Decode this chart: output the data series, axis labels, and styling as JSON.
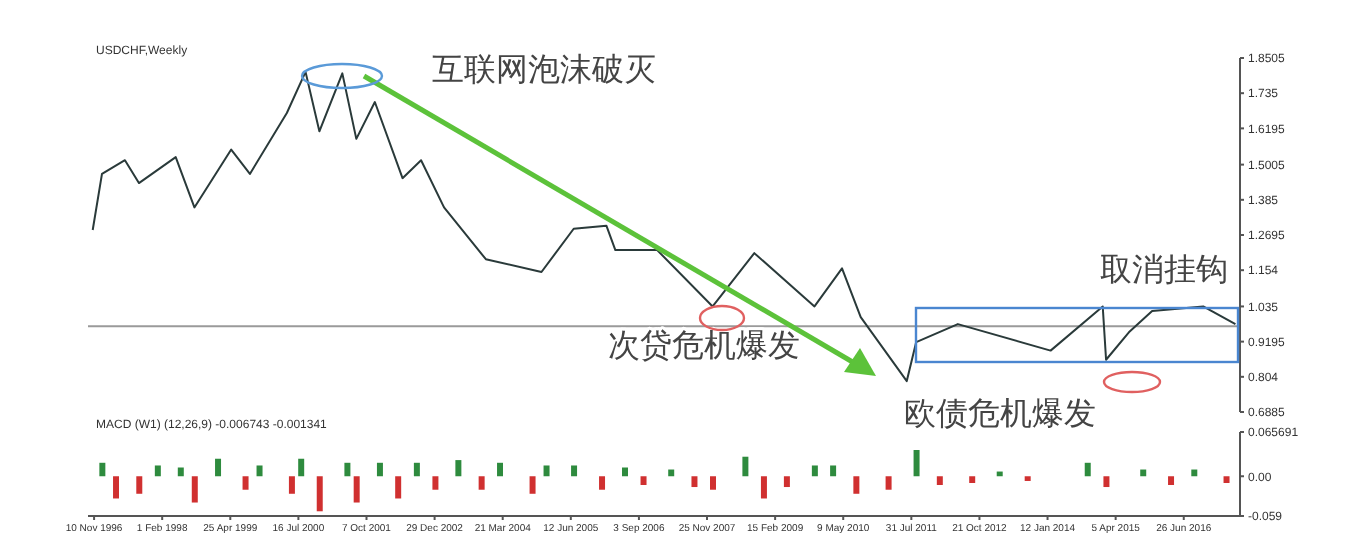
{
  "chart_data": [
    {
      "type": "line",
      "title": "USDCHF,Weekly",
      "tick_labels": "y",
      "grid": false,
      "x": [
        "1996-11",
        "1997-01",
        "1997-06",
        "1997-09",
        "1998-05",
        "1998-09",
        "1999-05",
        "1999-09",
        "2000-05",
        "2000-09",
        "2000-12",
        "2001-05",
        "2001-08",
        "2001-12",
        "2002-06",
        "2002-10",
        "2003-03",
        "2003-12",
        "2004-12",
        "2005-07",
        "2006-02",
        "2006-04",
        "2007-01",
        "2008-01",
        "2008-10",
        "2009-11",
        "2010-05",
        "2010-09",
        "2011-07",
        "2011-09",
        "2012-06",
        "2014-02",
        "2015-01-10",
        "2015-02",
        "2015-07",
        "2015-12",
        "2016-11",
        "2017-06"
      ],
      "series": [
        {
          "color": "#2a3a3a",
          "values": [
            1.286,
            1.47,
            1.515,
            1.44,
            1.525,
            1.36,
            1.55,
            1.47,
            1.67,
            1.805,
            1.61,
            1.8,
            1.585,
            1.706,
            1.456,
            1.515,
            1.36,
            1.19,
            1.148,
            1.29,
            1.3,
            1.22,
            1.22,
            1.035,
            1.21,
            1.035,
            1.16,
            1.0,
            0.79,
            0.918,
            0.977,
            0.89,
            1.035,
            0.86,
            0.95,
            1.02,
            1.035,
            0.977
          ]
        }
      ],
      "xlim": [
        "1996-10",
        "2017-07"
      ],
      "ylim": [
        0.6885,
        1.8505
      ],
      "yticks": [
        0.6885,
        0.804,
        0.9195,
        1.035,
        1.154,
        1.2695,
        1.385,
        1.5005,
        1.6195,
        1.735,
        1.8505
      ],
      "ref_lines": [
        {
          "axis": "y",
          "value": 0.97,
          "color": "#9a9a9a"
        }
      ],
      "annotations": [
        "互联网泡沫破灭",
        "次贷危机爆发",
        "欧债危机爆发",
        "取消挂钩"
      ]
    },
    {
      "type": "bar",
      "title": "MACD (W1) (12,26,9) -0.006743 -0.001341",
      "grid": false,
      "x": [
        "1997-01",
        "1997-04",
        "1997-09",
        "1998-01",
        "1998-06",
        "1998-09",
        "1999-02",
        "1999-08",
        "1999-11",
        "2000-06",
        "2000-08",
        "2000-12",
        "2001-06",
        "2001-08",
        "2002-01",
        "2002-05",
        "2002-09",
        "2003-01",
        "2003-06",
        "2003-11",
        "2004-03",
        "2004-10",
        "2005-01",
        "2005-07",
        "2006-01",
        "2006-06",
        "2006-10",
        "2007-04",
        "2007-09",
        "2008-01",
        "2008-08",
        "2008-12",
        "2009-05",
        "2009-11",
        "2010-03",
        "2010-08",
        "2011-03",
        "2011-09",
        "2012-02",
        "2012-09",
        "2013-03",
        "2013-09",
        "2014-10",
        "2015-02",
        "2015-10",
        "2016-04",
        "2016-09",
        "2017-04"
      ],
      "values": [
        0.02,
        -0.033,
        -0.026,
        0.016,
        0.013,
        -0.039,
        0.026,
        -0.02,
        0.016,
        -0.026,
        0.026,
        -0.052,
        0.02,
        -0.039,
        0.02,
        -0.033,
        0.02,
        -0.02,
        0.024,
        -0.02,
        0.02,
        -0.026,
        0.016,
        0.016,
        -0.02,
        0.013,
        -0.013,
        0.01,
        -0.016,
        -0.02,
        0.029,
        -0.033,
        -0.016,
        0.016,
        0.016,
        -0.026,
        -0.02,
        0.039,
        -0.013,
        -0.01,
        0.007,
        -0.007,
        0.02,
        -0.016,
        0.01,
        -0.013,
        0.01,
        -0.01
      ],
      "colors": [
        "#2e8b3e",
        "#d03030",
        "#d03030",
        "#2e8b3e",
        "#2e8b3e",
        "#d03030",
        "#2e8b3e",
        "#d03030",
        "#2e8b3e",
        "#d03030",
        "#2e8b3e",
        "#d03030",
        "#2e8b3e",
        "#d03030",
        "#2e8b3e",
        "#d03030",
        "#2e8b3e",
        "#d03030",
        "#2e8b3e",
        "#d03030",
        "#2e8b3e",
        "#d03030",
        "#2e8b3e",
        "#2e8b3e",
        "#d03030",
        "#2e8b3e",
        "#d03030",
        "#2e8b3e",
        "#d03030",
        "#d03030",
        "#2e8b3e",
        "#d03030",
        "#d03030",
        "#2e8b3e",
        "#2e8b3e",
        "#d03030",
        "#d03030",
        "#2e8b3e",
        "#d03030",
        "#d03030",
        "#2e8b3e",
        "#d03030",
        "#2e8b3e",
        "#d03030",
        "#2e8b3e",
        "#d03030",
        "#2e8b3e",
        "#d03030"
      ],
      "xlim": [
        "1996-10",
        "2017-07"
      ],
      "xticks": [
        {
          "value": "1996-11-10",
          "label": "10 Nov 1996"
        },
        {
          "value": "1998-02-01",
          "label": "1 Feb 1998"
        },
        {
          "value": "1999-04-25",
          "label": "25 Apr 1999"
        },
        {
          "value": "2000-07-16",
          "label": "16 Jul 2000"
        },
        {
          "value": "2001-10-07",
          "label": "7 Oct 2001"
        },
        {
          "value": "2002-12-29",
          "label": "29 Dec 2002"
        },
        {
          "value": "2004-03-21",
          "label": "21 Mar 2004"
        },
        {
          "value": "2005-06-12",
          "label": "12 Jun 2005"
        },
        {
          "value": "2006-09-03",
          "label": "3 Sep 2006"
        },
        {
          "value": "2007-11-25",
          "label": "25 Nov 2007"
        },
        {
          "value": "2009-02-15",
          "label": "15 Feb 2009"
        },
        {
          "value": "2010-05-09",
          "label": "9 May 2010"
        },
        {
          "value": "2011-07-31",
          "label": "31 Jul 2011"
        },
        {
          "value": "2012-10-21",
          "label": "21 Oct 2012"
        },
        {
          "value": "2014-01-12",
          "label": "12 Jan 2014"
        },
        {
          "value": "2015-04-05",
          "label": "5 Apr 2015"
        },
        {
          "value": "2016-06-26",
          "label": "26 Jun 2016"
        }
      ],
      "ylim": [
        -0.059,
        0.065691
      ],
      "yticks": [
        -0.059,
        {
          "value": 0,
          "label": "0.00"
        },
        0.065691
      ]
    }
  ]
}
